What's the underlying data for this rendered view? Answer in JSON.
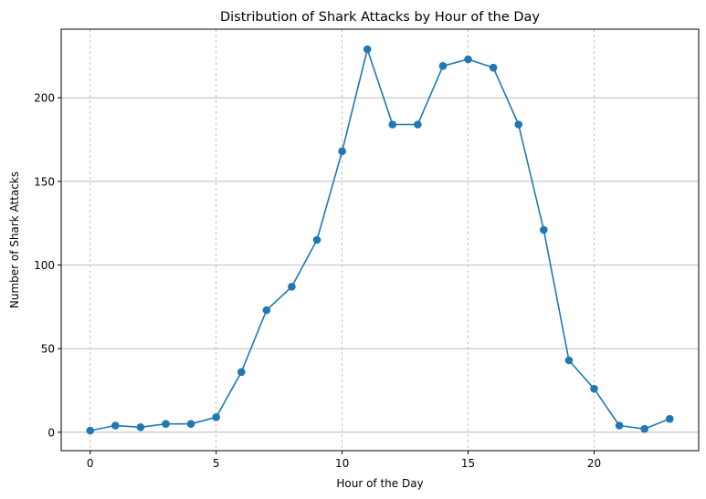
{
  "chart_data": {
    "type": "line",
    "title": "Distribution of Shark Attacks by Hour of the Day",
    "xlabel": "Hour of the Day",
    "ylabel": "Number of Shark Attacks",
    "xlim": [
      -1.15,
      24.15
    ],
    "ylim": [
      -11,
      241
    ],
    "xticks": [
      0,
      5,
      10,
      15,
      20
    ],
    "yticks": [
      0,
      50,
      100,
      150,
      200
    ],
    "grid": {
      "x": "dashed",
      "y": "solid"
    },
    "series": [
      {
        "color": "#1f77b4",
        "marker": "circle",
        "x": [
          0,
          1,
          2,
          3,
          4,
          5,
          6,
          7,
          8,
          9,
          10,
          11,
          12,
          13,
          14,
          15,
          16,
          17,
          18,
          19,
          20,
          21,
          22,
          23
        ],
        "y": [
          1,
          4,
          3,
          5,
          5,
          9,
          36,
          73,
          87,
          115,
          168,
          229,
          184,
          184,
          219,
          223,
          218,
          184,
          121,
          43,
          26,
          4,
          2,
          8
        ]
      }
    ]
  }
}
